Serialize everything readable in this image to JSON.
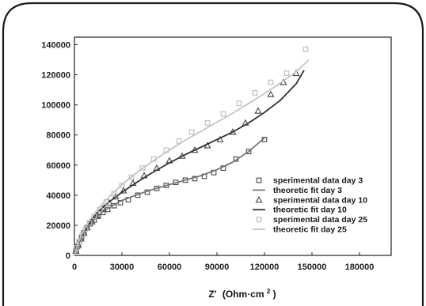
{
  "chart_data": {
    "type": "scatter",
    "title": "",
    "xlabel": "Z'",
    "xlabel_unit": "(Ohm·cm",
    "xlabel_sup": "2",
    "xlabel_close": ")",
    "ylabel": "",
    "xlim": [
      0,
      200000
    ],
    "ylim": [
      0,
      145000
    ],
    "xticks": [
      0,
      30000,
      60000,
      90000,
      120000,
      150000,
      180000
    ],
    "yticks": [
      0,
      20000,
      40000,
      60000,
      80000,
      100000,
      120000,
      140000
    ],
    "grid": false,
    "legend_position": "bottom-right",
    "series": [
      {
        "name": "sperimental data day 3",
        "kind": "points",
        "marker": "square",
        "color": "#444444",
        "x": [
          1000,
          2000,
          3000,
          4500,
          6000,
          8000,
          10000,
          12500,
          15000,
          18000,
          21000,
          25000,
          29000,
          34000,
          40000,
          46000,
          52000,
          58000,
          64000,
          70000,
          76000,
          82000,
          88000,
          94000,
          102000,
          110000,
          120000
        ],
        "y": [
          3000,
          6000,
          9000,
          12000,
          15000,
          18500,
          21000,
          23500,
          26000,
          28500,
          30500,
          33000,
          35000,
          37000,
          40000,
          42000,
          44500,
          46500,
          48500,
          50000,
          51000,
          52500,
          55000,
          58000,
          64000,
          69000,
          77000
        ]
      },
      {
        "name": "theoretic fit day 3",
        "kind": "line",
        "color": "#777777",
        "x": [
          0,
          2000,
          5000,
          10000,
          15000,
          20000,
          30000,
          40000,
          50000,
          60000,
          70000,
          80000,
          90000,
          100000,
          110000,
          120000
        ],
        "y": [
          0,
          6000,
          13000,
          21000,
          26500,
          30500,
          36500,
          40500,
          44000,
          47000,
          50000,
          53000,
          57000,
          62000,
          69000,
          78000
        ]
      },
      {
        "name": "sperimental data day 10",
        "kind": "points",
        "marker": "triangle",
        "color": "#444444",
        "x": [
          1000,
          2500,
          4000,
          6000,
          8000,
          11000,
          14000,
          18000,
          22000,
          26000,
          31000,
          37000,
          44000,
          52000,
          60000,
          68000,
          76000,
          84000,
          92000,
          100000,
          108000,
          116000,
          124000,
          132000,
          140000
        ],
        "y": [
          3000,
          7000,
          11000,
          15000,
          18500,
          22500,
          26500,
          31000,
          35000,
          39000,
          43000,
          48000,
          53000,
          58000,
          63000,
          66000,
          70000,
          73000,
          77000,
          82000,
          88000,
          96000,
          107000,
          115000,
          121000
        ]
      },
      {
        "name": "theoretic fit day 10",
        "kind": "line",
        "color": "#333333",
        "x": [
          0,
          2000,
          5000,
          10000,
          15000,
          20000,
          30000,
          40000,
          50000,
          60000,
          70000,
          80000,
          90000,
          100000,
          110000,
          120000,
          130000,
          140000,
          145000
        ],
        "y": [
          0,
          6500,
          14000,
          22500,
          29000,
          34000,
          42000,
          49000,
          55500,
          61500,
          67000,
          72000,
          77000,
          82000,
          88000,
          95000,
          103000,
          114000,
          123000
        ]
      },
      {
        "name": "sperimental data day 25",
        "kind": "points",
        "marker": "square",
        "color": "#bbbbbb",
        "x": [
          1500,
          3000,
          5000,
          7000,
          9500,
          12500,
          16000,
          20000,
          25000,
          30000,
          36000,
          43000,
          50000,
          58000,
          66000,
          74000,
          84000,
          94000,
          104000,
          114000,
          124000,
          134000,
          146000
        ],
        "y": [
          5000,
          9000,
          13500,
          17500,
          21500,
          26000,
          30500,
          35500,
          41000,
          46500,
          52000,
          58000,
          64000,
          70000,
          76000,
          82000,
          88000,
          94000,
          101000,
          108000,
          115000,
          121000,
          137000
        ]
      },
      {
        "name": "theoretic fit day 25",
        "kind": "line",
        "color": "#c4c4c4",
        "x": [
          0,
          2000,
          5000,
          10000,
          15000,
          20000,
          30000,
          40000,
          50000,
          60000,
          70000,
          80000,
          90000,
          100000,
          110000,
          120000,
          130000,
          140000,
          148000
        ],
        "y": [
          0,
          7000,
          15000,
          24000,
          31000,
          37000,
          47000,
          55500,
          63000,
          70000,
          76500,
          82500,
          88500,
          94500,
          101000,
          107500,
          114500,
          122000,
          130000
        ]
      }
    ]
  }
}
